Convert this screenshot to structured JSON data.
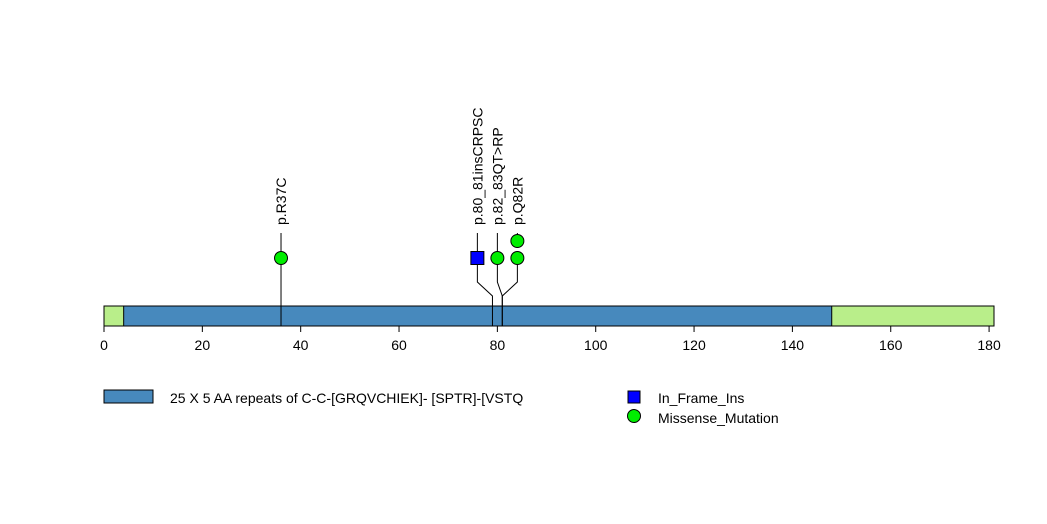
{
  "chart_data": {
    "type": "lollipop",
    "title": "",
    "xlim": [
      0,
      181
    ],
    "x_ticks": [
      0,
      20,
      40,
      60,
      80,
      100,
      120,
      140,
      160,
      180
    ],
    "protein_length": 181,
    "backbone_color": "#b9ee8a",
    "domains": [
      {
        "name": "25 X 5 AA repeats of C-C-[GRQVCHIEK]- [SPTR]-[VSTQ",
        "start": 4,
        "end": 148,
        "color": "#4789bd"
      }
    ],
    "mutations": [
      {
        "label": "p.R37C",
        "position": 36,
        "type": "Missense_Mutation",
        "count": 1
      },
      {
        "label": "p.80_81insCRPSC",
        "position": 79,
        "type": "In_Frame_Ins",
        "count": 1
      },
      {
        "label": "p.82_83QT>RP",
        "position": 81,
        "type": "Missense_Mutation",
        "count": 1
      },
      {
        "label": "p.Q82R",
        "position": 81,
        "type": "Missense_Mutation",
        "count": 2
      }
    ],
    "legend": {
      "domain_label": "25 X 5 AA repeats of C-C-[GRQVCHIEK]- [SPTR]-[VSTQ",
      "mutation_types": [
        {
          "name": "In_Frame_Ins",
          "shape": "square",
          "color": "#0000ff"
        },
        {
          "name": "Missense_Mutation",
          "shape": "circle",
          "color": "#00ee00"
        }
      ]
    }
  }
}
